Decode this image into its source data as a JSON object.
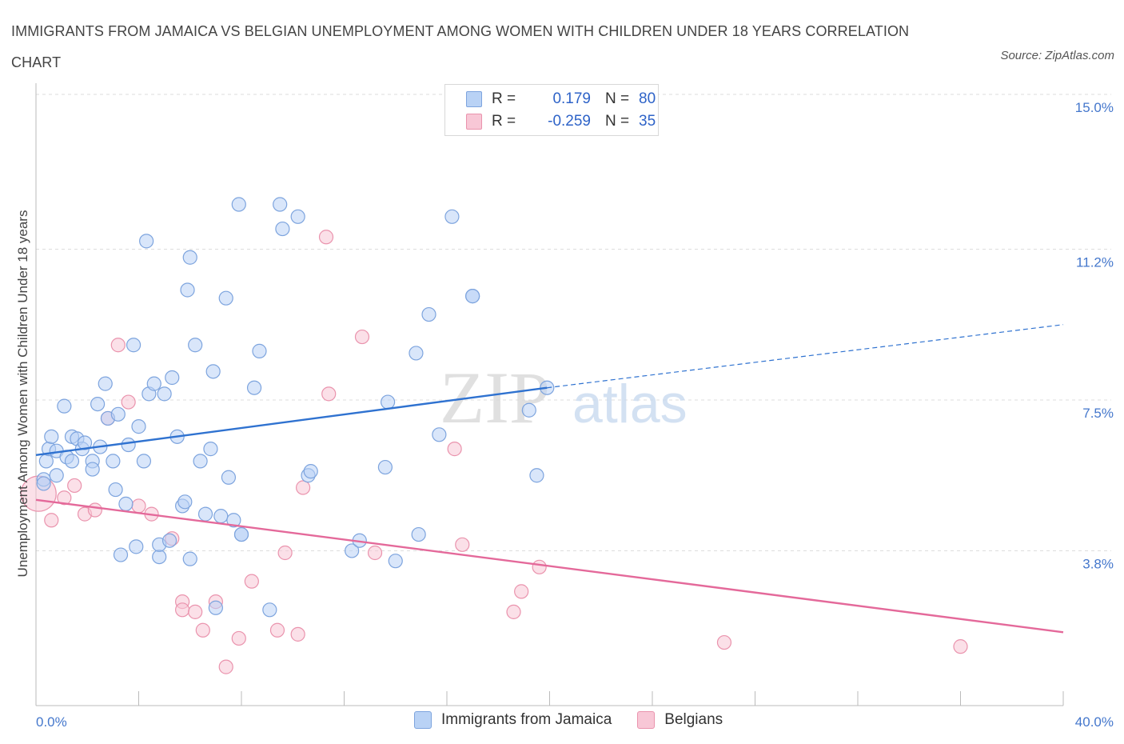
{
  "title": "IMMIGRANTS FROM JAMAICA VS BELGIAN UNEMPLOYMENT AMONG WOMEN WITH CHILDREN UNDER 18 YEARS CORRELATION CHART",
  "source": "Source: ZipAtlas.com",
  "watermark": {
    "zip": "ZIP",
    "atlas": "atlas"
  },
  "legend": {
    "rows": [
      {
        "r_label": "R =",
        "r_value": " 0.179",
        "n_label": "N =",
        "n_value": "80"
      },
      {
        "r_label": "R =",
        "r_value": "-0.259",
        "n_label": "N =",
        "n_value": "35"
      }
    ]
  },
  "colors": {
    "blue_fill": "#b9d2f5",
    "blue_stroke": "#7da4de",
    "blue_line": "#2f72d0",
    "pink_fill": "#f8c7d6",
    "pink_stroke": "#ea93ad",
    "pink_line": "#e4699a",
    "tick_text": "#4477cc",
    "grid": "#dddddd"
  },
  "chart_data": {
    "type": "scatter",
    "title": "IMMIGRANTS FROM JAMAICA VS BELGIAN UNEMPLOYMENT AMONG WOMEN WITH CHILDREN UNDER 18 YEARS CORRELATION CHART",
    "xlabel": "",
    "ylabel": "Unemployment Among Women with Children Under 18 years",
    "xlim": [
      0,
      40
    ],
    "ylim": [
      0,
      15
    ],
    "x_tick_labels": [
      "0.0%",
      "40.0%"
    ],
    "y_ticks": [
      3.8,
      7.5,
      11.2,
      15.0
    ],
    "y_tick_labels": [
      "3.8%",
      "7.5%",
      "11.2%",
      "15.0%"
    ],
    "grid": "horizontal dashed",
    "legend_position": "top-center and bottom",
    "series": [
      {
        "name": "Immigrants from Jamaica",
        "r": 0.179,
        "n": 80,
        "trend": {
          "x": [
            0,
            19.9
          ],
          "y": [
            6.15,
            7.8
          ],
          "dashed_extension_to": [
            40,
            9.35
          ]
        },
        "points": [
          [
            0.3,
            5.55
          ],
          [
            0.3,
            5.45
          ],
          [
            0.4,
            6.0
          ],
          [
            0.5,
            6.3
          ],
          [
            0.6,
            6.6
          ],
          [
            0.8,
            5.65
          ],
          [
            0.8,
            6.25
          ],
          [
            1.1,
            7.35
          ],
          [
            1.2,
            6.1
          ],
          [
            1.4,
            6.0
          ],
          [
            1.4,
            6.6
          ],
          [
            1.6,
            6.55
          ],
          [
            1.8,
            6.3
          ],
          [
            1.9,
            6.45
          ],
          [
            2.2,
            6.0
          ],
          [
            2.2,
            5.8
          ],
          [
            2.4,
            7.4
          ],
          [
            2.5,
            6.35
          ],
          [
            2.7,
            7.9
          ],
          [
            2.8,
            7.05
          ],
          [
            3.0,
            6.0
          ],
          [
            3.1,
            5.3
          ],
          [
            3.2,
            7.15
          ],
          [
            3.3,
            3.7
          ],
          [
            3.5,
            4.95
          ],
          [
            3.6,
            6.4
          ],
          [
            3.8,
            8.85
          ],
          [
            3.9,
            3.9
          ],
          [
            4.0,
            6.85
          ],
          [
            4.2,
            6.0
          ],
          [
            4.3,
            11.4
          ],
          [
            4.4,
            7.65
          ],
          [
            4.6,
            7.9
          ],
          [
            4.8,
            3.65
          ],
          [
            4.8,
            3.95
          ],
          [
            5.0,
            7.65
          ],
          [
            5.2,
            4.05
          ],
          [
            5.3,
            8.05
          ],
          [
            5.5,
            6.6
          ],
          [
            5.7,
            4.9
          ],
          [
            5.8,
            5.0
          ],
          [
            5.9,
            10.2
          ],
          [
            6.0,
            11.0
          ],
          [
            6.0,
            3.6
          ],
          [
            6.2,
            8.85
          ],
          [
            6.4,
            6.0
          ],
          [
            6.6,
            4.7
          ],
          [
            6.8,
            6.3
          ],
          [
            6.9,
            8.2
          ],
          [
            7.0,
            2.4
          ],
          [
            7.2,
            4.65
          ],
          [
            7.4,
            10.0
          ],
          [
            7.5,
            5.6
          ],
          [
            7.7,
            4.55
          ],
          [
            7.9,
            12.3
          ],
          [
            8.0,
            4.2
          ],
          [
            8.5,
            7.8
          ],
          [
            8.7,
            8.7
          ],
          [
            9.1,
            2.35
          ],
          [
            9.5,
            12.3
          ],
          [
            9.6,
            11.7
          ],
          [
            10.2,
            12.0
          ],
          [
            10.6,
            5.65
          ],
          [
            10.7,
            5.75
          ],
          [
            12.3,
            3.8
          ],
          [
            12.6,
            4.05
          ],
          [
            13.6,
            5.85
          ],
          [
            13.7,
            7.45
          ],
          [
            14.0,
            3.55
          ],
          [
            14.8,
            8.65
          ],
          [
            14.9,
            4.2
          ],
          [
            15.3,
            9.6
          ],
          [
            15.7,
            6.65
          ],
          [
            16.2,
            12.0
          ],
          [
            17.0,
            10.05
          ],
          [
            19.2,
            7.25
          ],
          [
            19.5,
            5.65
          ],
          [
            19.9,
            7.8
          ],
          [
            17.0,
            10.05
          ],
          [
            8.0,
            4.2
          ]
        ]
      },
      {
        "name": "Belgians",
        "r": -0.259,
        "n": 35,
        "trend": {
          "x": [
            0,
            40
          ],
          "y": [
            5.05,
            1.8
          ]
        },
        "points": [
          [
            0.1,
            5.2
          ],
          [
            0.6,
            4.55
          ],
          [
            1.1,
            5.1
          ],
          [
            1.5,
            5.4
          ],
          [
            1.9,
            4.7
          ],
          [
            2.3,
            4.8
          ],
          [
            2.8,
            7.05
          ],
          [
            3.2,
            8.85
          ],
          [
            3.6,
            7.45
          ],
          [
            4.0,
            4.9
          ],
          [
            4.5,
            4.7
          ],
          [
            5.3,
            4.1
          ],
          [
            5.7,
            2.55
          ],
          [
            5.7,
            2.35
          ],
          [
            6.2,
            2.3
          ],
          [
            6.5,
            1.85
          ],
          [
            7.0,
            2.55
          ],
          [
            7.4,
            0.95
          ],
          [
            7.9,
            1.65
          ],
          [
            8.4,
            3.05
          ],
          [
            9.4,
            1.85
          ],
          [
            9.7,
            3.75
          ],
          [
            10.2,
            1.75
          ],
          [
            10.4,
            5.35
          ],
          [
            11.3,
            11.5
          ],
          [
            11.4,
            7.65
          ],
          [
            12.7,
            9.05
          ],
          [
            13.2,
            3.75
          ],
          [
            16.3,
            6.3
          ],
          [
            16.6,
            3.95
          ],
          [
            18.6,
            2.3
          ],
          [
            18.9,
            2.8
          ],
          [
            19.6,
            3.4
          ],
          [
            26.8,
            1.55
          ],
          [
            36.0,
            1.45
          ]
        ]
      }
    ]
  }
}
